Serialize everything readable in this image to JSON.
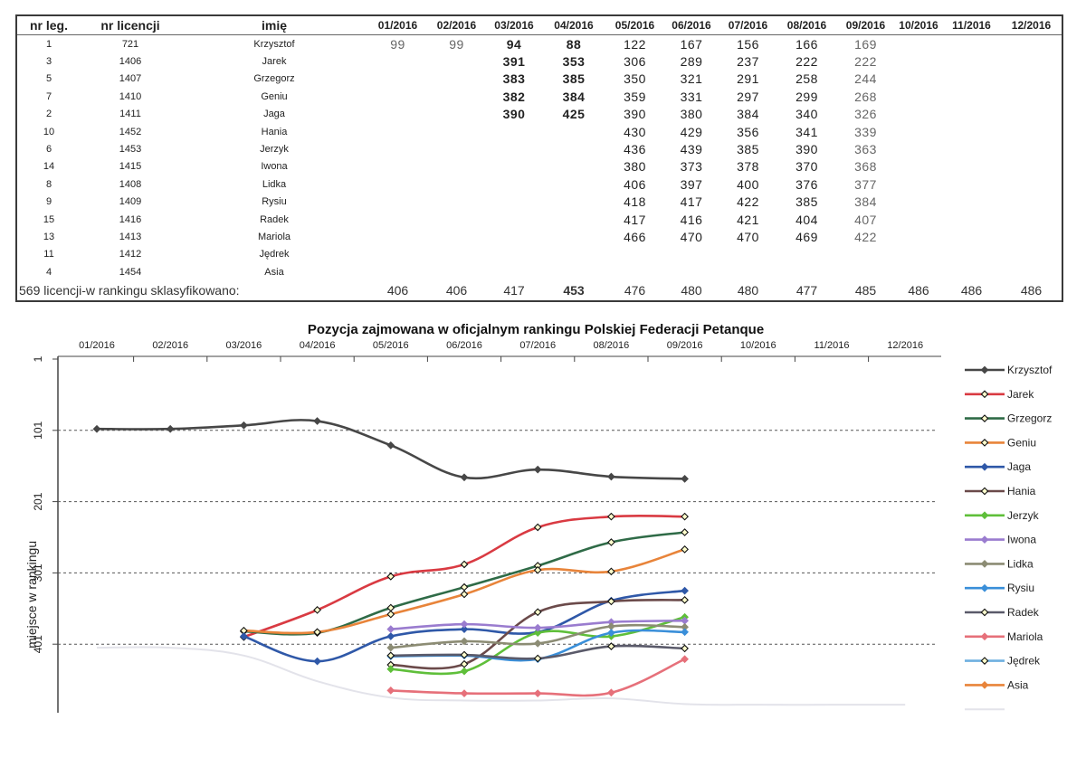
{
  "table": {
    "headers": [
      "nr leg.",
      "nr licencji",
      "imię",
      "01/2016",
      "02/2016",
      "03/2016",
      "04/2016",
      "05/2016",
      "06/2016",
      "07/2016",
      "08/2016",
      "09/2016",
      "10/2016",
      "11/2016",
      "12/2016"
    ],
    "rows": [
      {
        "leg": "1",
        "lic": "721",
        "name": "Krzysztof",
        "values": [
          "99",
          "99",
          "94",
          "88",
          "122",
          "167",
          "156",
          "166",
          "169",
          "",
          "",
          ""
        ]
      },
      {
        "leg": "3",
        "lic": "1406",
        "name": "Jarek",
        "values": [
          "",
          "",
          "391",
          "353",
          "306",
          "289",
          "237",
          "222",
          "222",
          "",
          "",
          ""
        ]
      },
      {
        "leg": "5",
        "lic": "1407",
        "name": "Grzegorz",
        "values": [
          "",
          "",
          "383",
          "385",
          "350",
          "321",
          "291",
          "258",
          "244",
          "",
          "",
          ""
        ]
      },
      {
        "leg": "7",
        "lic": "1410",
        "name": "Geniu",
        "values": [
          "",
          "",
          "382",
          "384",
          "359",
          "331",
          "297",
          "299",
          "268",
          "",
          "",
          ""
        ]
      },
      {
        "leg": "2",
        "lic": "1411",
        "name": "Jaga",
        "values": [
          "",
          "",
          "390",
          "425",
          "390",
          "380",
          "384",
          "340",
          "326",
          "",
          "",
          ""
        ]
      },
      {
        "leg": "10",
        "lic": "1452",
        "name": "Hania",
        "values": [
          "",
          "",
          "",
          "",
          "430",
          "429",
          "356",
          "341",
          "339",
          "",
          "",
          ""
        ]
      },
      {
        "leg": "6",
        "lic": "1453",
        "name": "Jerzyk",
        "values": [
          "",
          "",
          "",
          "",
          "436",
          "439",
          "385",
          "390",
          "363",
          "",
          "",
          ""
        ]
      },
      {
        "leg": "14",
        "lic": "1415",
        "name": "Iwona",
        "values": [
          "",
          "",
          "",
          "",
          "380",
          "373",
          "378",
          "370",
          "368",
          "",
          "",
          ""
        ]
      },
      {
        "leg": "8",
        "lic": "1408",
        "name": "Lidka",
        "values": [
          "",
          "",
          "",
          "",
          "406",
          "397",
          "400",
          "376",
          "377",
          "",
          "",
          ""
        ]
      },
      {
        "leg": "9",
        "lic": "1409",
        "name": "Rysiu",
        "values": [
          "",
          "",
          "",
          "",
          "418",
          "417",
          "422",
          "385",
          "384",
          "",
          "",
          ""
        ]
      },
      {
        "leg": "15",
        "lic": "1416",
        "name": "Radek",
        "values": [
          "",
          "",
          "",
          "",
          "417",
          "416",
          "421",
          "404",
          "407",
          "",
          "",
          ""
        ]
      },
      {
        "leg": "13",
        "lic": "1413",
        "name": "Mariola",
        "values": [
          "",
          "",
          "",
          "",
          "466",
          "470",
          "470",
          "469",
          "422",
          "",
          "",
          ""
        ]
      },
      {
        "leg": "11",
        "lic": "1412",
        "name": "Jędrek",
        "values": [
          "",
          "",
          "",
          "",
          "",
          "",
          "",
          "",
          "",
          "",
          "",
          ""
        ]
      },
      {
        "leg": "4",
        "lic": "1454",
        "name": "Asia",
        "values": [
          "",
          "",
          "",
          "",
          "",
          "",
          "",
          "",
          "",
          "",
          "",
          ""
        ]
      }
    ],
    "summary_label": "569 licencji-w rankingu sklasyfikowano:",
    "summary_values": [
      "406",
      "406",
      "417",
      "453",
      "476",
      "480",
      "480",
      "477",
      "485",
      "486",
      "486",
      "486"
    ]
  },
  "chart_data": {
    "type": "line",
    "title": "Pozycja zajmowana w oficjalnym rankingu Polskiej Federacji Petanque",
    "ylabel": "miejsce w rankingu",
    "xlabel": "",
    "categories": [
      "01/2016",
      "02/2016",
      "03/2016",
      "04/2016",
      "05/2016",
      "06/2016",
      "07/2016",
      "08/2016",
      "09/2016",
      "10/2016",
      "11/2016",
      "12/2016"
    ],
    "yticks": [
      "1",
      "101",
      "201",
      "301",
      "401"
    ],
    "ylim": [
      1,
      501
    ],
    "y_inverted": true,
    "grid": "horizontal dashed",
    "legend_position": "right",
    "series": [
      {
        "name": "Krzysztof",
        "color": "#474747",
        "marker": "diamond-filled",
        "values": [
          99,
          99,
          94,
          88,
          122,
          167,
          156,
          166,
          169,
          null,
          null,
          null
        ]
      },
      {
        "name": "Jarek",
        "color": "#d93a42",
        "marker": "diamond-open",
        "values": [
          null,
          null,
          391,
          353,
          306,
          289,
          237,
          222,
          222,
          null,
          null,
          null
        ]
      },
      {
        "name": "Grzegorz",
        "color": "#2f6b47",
        "marker": "diamond-open",
        "values": [
          null,
          null,
          383,
          385,
          350,
          321,
          291,
          258,
          244,
          null,
          null,
          null
        ]
      },
      {
        "name": "Geniu",
        "color": "#e8843a",
        "marker": "diamond-open",
        "values": [
          null,
          null,
          382,
          384,
          359,
          331,
          297,
          299,
          268,
          null,
          null,
          null
        ]
      },
      {
        "name": "Jaga",
        "color": "#2f58a8",
        "marker": "diamond-filled",
        "values": [
          null,
          null,
          390,
          425,
          390,
          380,
          384,
          340,
          326,
          null,
          null,
          null
        ]
      },
      {
        "name": "Hania",
        "color": "#6b4a4a",
        "marker": "diamond-open",
        "values": [
          null,
          null,
          null,
          null,
          430,
          429,
          356,
          341,
          339,
          null,
          null,
          null
        ]
      },
      {
        "name": "Jerzyk",
        "color": "#5fbf3a",
        "marker": "diamond-filled",
        "values": [
          null,
          null,
          null,
          null,
          436,
          439,
          385,
          390,
          363,
          null,
          null,
          null
        ]
      },
      {
        "name": "Iwona",
        "color": "#9a7ccf",
        "marker": "diamond-filled",
        "values": [
          null,
          null,
          null,
          null,
          380,
          373,
          378,
          370,
          368,
          null,
          null,
          null
        ]
      },
      {
        "name": "Lidka",
        "color": "#8c8c74",
        "marker": "diamond-filled",
        "values": [
          null,
          null,
          null,
          null,
          406,
          397,
          400,
          376,
          377,
          null,
          null,
          null
        ]
      },
      {
        "name": "Rysiu",
        "color": "#3a8fd9",
        "marker": "diamond-filled",
        "values": [
          null,
          null,
          null,
          null,
          418,
          417,
          422,
          385,
          384,
          null,
          null,
          null
        ]
      },
      {
        "name": "Radek",
        "color": "#5a5a6a",
        "marker": "diamond-open",
        "values": [
          null,
          null,
          null,
          null,
          417,
          416,
          421,
          404,
          407,
          null,
          null,
          null
        ]
      },
      {
        "name": "Mariola",
        "color": "#e6707a",
        "marker": "diamond-filled",
        "values": [
          null,
          null,
          null,
          null,
          466,
          470,
          470,
          469,
          422,
          null,
          null,
          null
        ]
      },
      {
        "name": "Jędrek",
        "color": "#6fb0e0",
        "marker": "diamond-open",
        "values": [
          null,
          null,
          null,
          null,
          null,
          null,
          null,
          null,
          null,
          null,
          null,
          null
        ]
      },
      {
        "name": "Asia",
        "color": "#e8843a",
        "marker": "diamond-filled",
        "values": [
          null,
          null,
          null,
          null,
          null,
          null,
          null,
          null,
          null,
          null,
          null,
          null
        ]
      },
      {
        "name": "",
        "color": "#e3e3ea",
        "marker": "none",
        "values": [
          406,
          406,
          417,
          453,
          476,
          480,
          480,
          477,
          485,
          486,
          486,
          486
        ]
      }
    ]
  }
}
